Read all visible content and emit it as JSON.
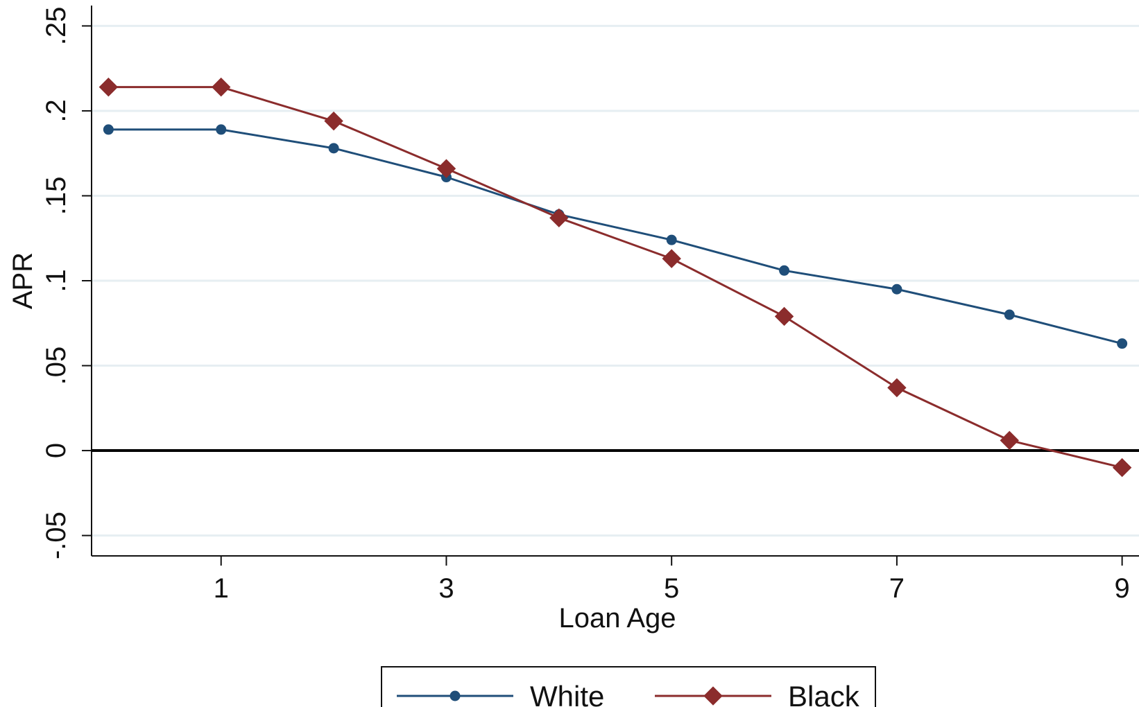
{
  "chart_data": {
    "type": "line",
    "title": "",
    "xlabel": "Loan Age",
    "ylabel": "APR",
    "x": [
      0,
      1,
      2,
      3,
      4,
      5,
      6,
      7,
      8,
      9
    ],
    "xlim": [
      -0.15,
      9.15
    ],
    "ylim": [
      -0.062,
      0.262
    ],
    "x_ticks": [
      1,
      3,
      5,
      7,
      9
    ],
    "x_tick_labels": [
      "1",
      "3",
      "5",
      "7",
      "9"
    ],
    "y_ticks": [
      -0.05,
      0,
      0.05,
      0.1,
      0.15,
      0.2,
      0.25
    ],
    "y_tick_labels": [
      "-.05",
      "0",
      ".05",
      ".1",
      ".15",
      ".2",
      ".25"
    ],
    "grid": true,
    "reference_line_y": 0,
    "legend_position": "bottom",
    "series": [
      {
        "name": "White",
        "color": "#1f4e79",
        "marker": "circle",
        "values": [
          0.189,
          0.189,
          0.178,
          0.161,
          0.139,
          0.124,
          0.106,
          0.095,
          0.08,
          0.063
        ]
      },
      {
        "name": "Black",
        "color": "#8b2c2c",
        "marker": "diamond",
        "values": [
          0.214,
          0.214,
          0.194,
          0.166,
          0.137,
          0.113,
          0.079,
          0.037,
          0.006,
          -0.01
        ]
      }
    ]
  }
}
